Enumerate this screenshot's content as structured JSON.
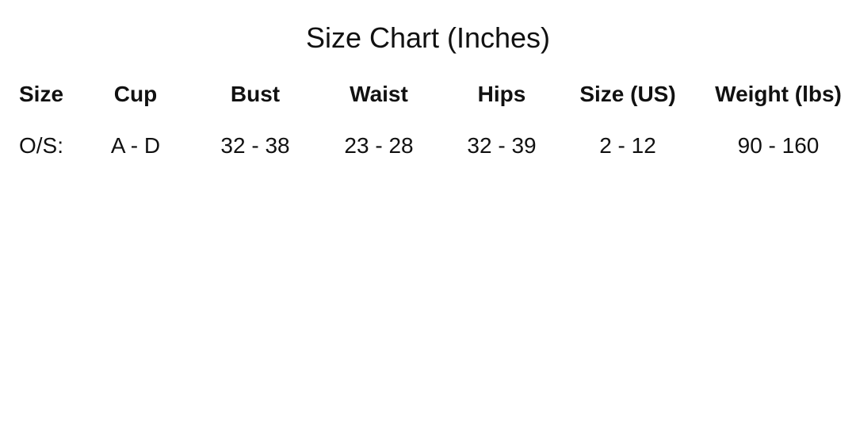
{
  "title": "Size Chart (Inches)",
  "headers": [
    "Size",
    "Cup",
    "Bust",
    "Waist",
    "Hips",
    "Size (US)",
    "Weight (lbs)"
  ],
  "row": [
    "O/S:",
    "A - D",
    "32 - 38",
    "23 - 28",
    "32 - 39",
    "2 - 12",
    "90 - 160"
  ]
}
